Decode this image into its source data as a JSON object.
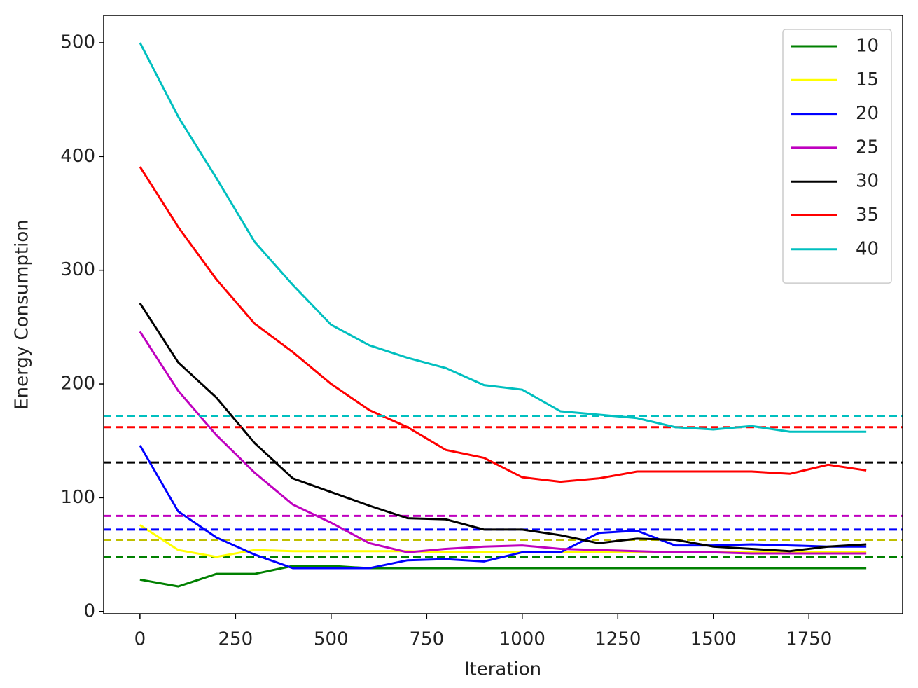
{
  "chart_data": {
    "type": "line",
    "x_label": "Iteration",
    "y_label": "Energy Consumption",
    "x": [
      0,
      100,
      200,
      300,
      400,
      500,
      600,
      700,
      800,
      900,
      1000,
      1100,
      1200,
      1300,
      1400,
      1500,
      1600,
      1700,
      1800,
      1900
    ],
    "xlim": [
      -95,
      1995
    ],
    "xticks": [
      0,
      250,
      500,
      750,
      1000,
      1250,
      1500,
      1750
    ],
    "ylim": [
      -2,
      524
    ],
    "yticks": [
      0,
      100,
      200,
      300,
      400,
      500
    ],
    "legend": "upper right",
    "grid": false,
    "series": [
      {
        "name": "10",
        "color": "#008000",
        "values": [
          28,
          22,
          33,
          33,
          40,
          40,
          38,
          38,
          38,
          38,
          38,
          38,
          38,
          38,
          38,
          38,
          38,
          38,
          38,
          38
        ],
        "reference": {
          "value": 48,
          "color": "#008000"
        }
      },
      {
        "name": "15",
        "color": "#ffff00",
        "values": [
          76,
          54,
          48,
          54,
          53,
          53,
          53,
          53,
          52,
          52,
          52,
          52,
          52,
          52,
          52,
          52,
          52,
          52,
          52,
          52
        ],
        "reference": {
          "value": 63,
          "color": "#bfbf00"
        }
      },
      {
        "name": "20",
        "color": "#0000ff",
        "values": [
          146,
          88,
          65,
          50,
          38,
          38,
          38,
          45,
          46,
          44,
          52,
          52,
          69,
          71,
          58,
          58,
          59,
          58,
          57,
          57
        ],
        "reference": {
          "value": 72,
          "color": "#0000ff"
        }
      },
      {
        "name": "25",
        "color": "#bf00bf",
        "values": [
          246,
          194,
          155,
          122,
          94,
          78,
          60,
          52,
          55,
          57,
          58,
          55,
          54,
          53,
          52,
          52,
          51,
          51,
          51,
          51
        ],
        "reference": {
          "value": 84,
          "color": "#bf00bf"
        }
      },
      {
        "name": "30",
        "color": "#000000",
        "values": [
          271,
          219,
          188,
          148,
          117,
          105,
          93,
          82,
          81,
          72,
          72,
          67,
          60,
          64,
          63,
          57,
          55,
          53,
          57,
          59
        ],
        "reference": {
          "value": 131,
          "color": "#000000"
        }
      },
      {
        "name": "35",
        "color": "#ff0000",
        "values": [
          391,
          338,
          292,
          253,
          228,
          200,
          177,
          162,
          142,
          135,
          118,
          114,
          117,
          123,
          123,
          123,
          123,
          121,
          129,
          124
        ],
        "reference": {
          "value": 162,
          "color": "#ff0000"
        }
      },
      {
        "name": "40",
        "color": "#00bfbf",
        "values": [
          500,
          435,
          381,
          325,
          287,
          252,
          234,
          223,
          214,
          199,
          195,
          176,
          173,
          170,
          162,
          160,
          163,
          158,
          158,
          158
        ],
        "reference": {
          "value": 172,
          "color": "#00bfbf"
        }
      }
    ]
  }
}
